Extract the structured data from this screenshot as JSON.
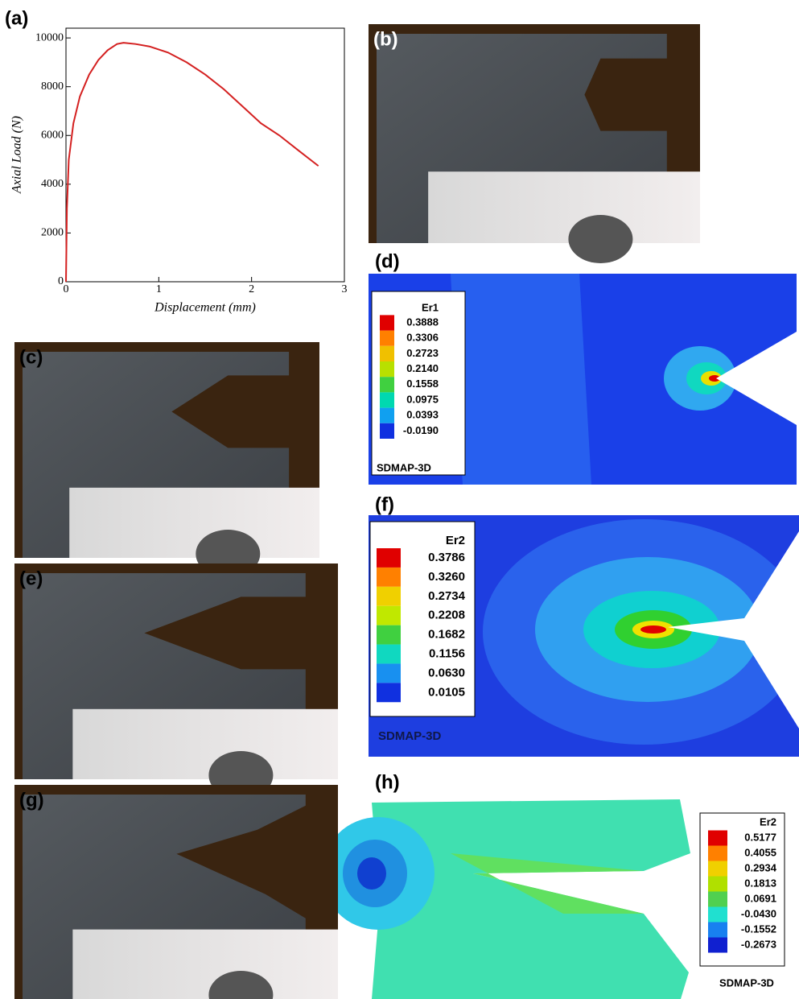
{
  "chart_data": {
    "type": "line",
    "panel_label": "(a)",
    "xlabel": "Displacement (mm)",
    "ylabel": "Axial Load (N)",
    "x": [
      0,
      0.01,
      0.03,
      0.08,
      0.15,
      0.25,
      0.35,
      0.45,
      0.55,
      0.62,
      0.75,
      0.9,
      1.1,
      1.3,
      1.5,
      1.7,
      1.9,
      2.1,
      2.3,
      2.5,
      2.72
    ],
    "series": [
      {
        "color": "#d42020",
        "values": [
          0,
          3000,
          5000,
          6500,
          7600,
          8500,
          9100,
          9500,
          9750,
          9800,
          9750,
          9650,
          9400,
          9000,
          8500,
          7900,
          7200,
          6500,
          6000,
          5400,
          4750
        ]
      }
    ],
    "xlim": [
      0,
      3
    ],
    "ylim": [
      0,
      10400
    ],
    "xticks": [
      0,
      1,
      2,
      3
    ],
    "yticks": [
      0,
      2000,
      4000,
      6000,
      8000,
      10000
    ]
  },
  "photo_panels": [
    {
      "label": "(b)"
    },
    {
      "label": "(c)"
    },
    {
      "label": "(e)"
    },
    {
      "label": "(g)"
    }
  ],
  "contour_panels": [
    {
      "label": "(d)",
      "legend_title": "Er1",
      "levels": [
        "0.3888",
        "0.3306",
        "0.2723",
        "0.2140",
        "0.1558",
        "0.0975",
        "0.0393",
        "-0.0190"
      ],
      "software": "SDMAP-3D"
    },
    {
      "label": "(f)",
      "legend_title": "Er2",
      "levels": [
        "0.3786",
        "0.3260",
        "0.2734",
        "0.2208",
        "0.1682",
        "0.1156",
        "0.0630",
        "0.0105"
      ],
      "software": "SDMAP-3D"
    },
    {
      "label": "(h)",
      "legend_title": "Er2",
      "levels": [
        "0.5177",
        "0.4055",
        "0.2934",
        "0.1813",
        "0.0691",
        "-0.0430",
        "-0.1552",
        "-0.2673"
      ],
      "software": "SDMAP-3D"
    }
  ]
}
